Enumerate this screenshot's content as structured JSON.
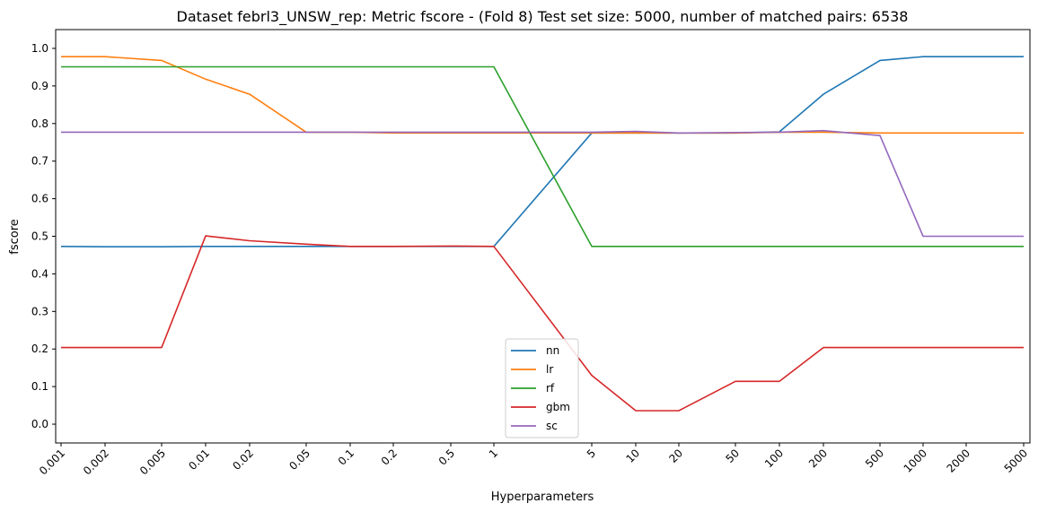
{
  "chart_data": {
    "type": "line",
    "title": "Dataset febrl3_UNSW_rep: Metric fscore - (Fold 8) Test set size: 5000, number of matched pairs: 6538",
    "xlabel": "Hyperparameters",
    "ylabel": "fscore",
    "xscale": "log (piecewise)",
    "x_tick_labels": [
      "0.001",
      "0.002",
      "0.005",
      "0.01",
      "0.02",
      "0.05",
      "0.1",
      "0.2",
      "0.5",
      "1",
      "5",
      "10",
      "20",
      "50",
      "100",
      "200",
      "500",
      "1000",
      "2000",
      "5000"
    ],
    "x": [
      0.001,
      0.002,
      0.005,
      0.01,
      0.02,
      0.05,
      0.1,
      0.2,
      0.5,
      1,
      5,
      10,
      20,
      50,
      100,
      200,
      500,
      1000,
      2000,
      5000
    ],
    "y_ticks": [
      0.0,
      0.1,
      0.2,
      0.3,
      0.4,
      0.5,
      0.6,
      0.7,
      0.8,
      0.9,
      1.0
    ],
    "y_tick_labels": [
      "0.0",
      "0.1",
      "0.2",
      "0.3",
      "0.4",
      "0.5",
      "0.6",
      "0.7",
      "0.8",
      "0.9",
      "1.0"
    ],
    "ylim": [
      -0.05,
      1.05
    ],
    "grid": false,
    "legend_position": "lower center",
    "series": [
      {
        "name": "nn",
        "color": "#1f77b4",
        "values": [
          0.473,
          0.472,
          0.472,
          0.473,
          0.473,
          0.473,
          0.473,
          0.473,
          0.473,
          0.473,
          0.775,
          0.775,
          0.775,
          0.775,
          0.778,
          0.878,
          0.968,
          0.978,
          0.978,
          0.978
        ]
      },
      {
        "name": "lr",
        "color": "#ff7f0e",
        "values": [
          0.978,
          0.978,
          0.968,
          0.918,
          0.878,
          0.777,
          0.777,
          0.775,
          0.775,
          0.775,
          0.775,
          0.775,
          0.775,
          0.775,
          0.777,
          0.777,
          0.775,
          0.775,
          0.775,
          0.775
        ]
      },
      {
        "name": "rf",
        "color": "#2ca02c",
        "values": [
          0.951,
          0.951,
          0.951,
          0.951,
          0.951,
          0.951,
          0.951,
          0.951,
          0.951,
          0.951,
          0.473,
          0.473,
          0.473,
          0.473,
          0.473,
          0.473,
          0.473,
          0.473,
          0.473,
          0.473
        ]
      },
      {
        "name": "gbm",
        "color": "#d62728",
        "values": [
          0.204,
          0.204,
          0.204,
          0.501,
          0.488,
          0.479,
          0.473,
          0.473,
          0.474,
          0.473,
          0.13,
          0.036,
          0.036,
          0.114,
          0.114,
          0.204,
          0.204,
          0.204,
          0.204,
          0.204
        ]
      },
      {
        "name": "sc",
        "color": "#9467bd",
        "values": [
          0.777,
          0.777,
          0.777,
          0.777,
          0.777,
          0.777,
          0.777,
          0.777,
          0.777,
          0.777,
          0.777,
          0.779,
          0.775,
          0.776,
          0.777,
          0.781,
          0.768,
          0.5,
          0.5,
          0.5
        ]
      }
    ]
  }
}
